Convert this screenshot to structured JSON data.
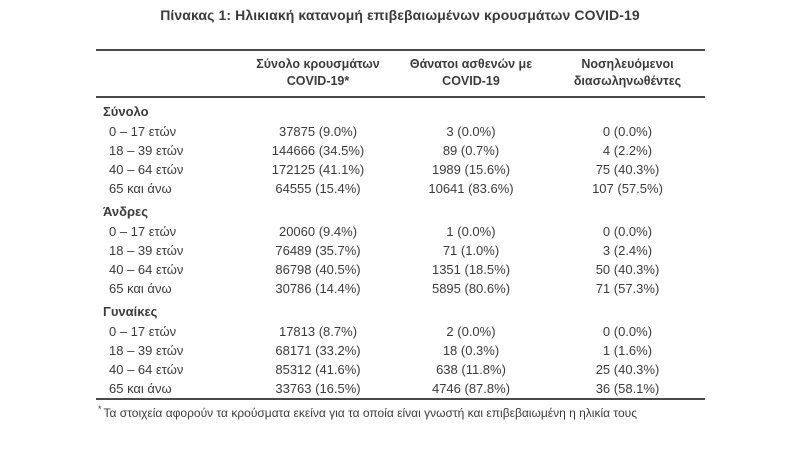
{
  "page": {
    "title": "Πίνακας 1: Ηλικιακή κατανομή επιβεβαιωμένων κρουσμάτων COVID-19"
  },
  "table": {
    "headers": {
      "cases": {
        "line1": "Σύνολο κρουσμάτων",
        "line2": "COVID-19*"
      },
      "deaths": {
        "line1": "Θάνατοι ασθενών με",
        "line2": "COVID-19"
      },
      "intubated": {
        "line1": "Νοσηλευόμενοι",
        "line2": "διασωληνωθέντες"
      }
    },
    "sections": [
      {
        "label": "Σύνολο",
        "rows": [
          {
            "age": "0 – 17 ετών",
            "cases": "37875 (9.0%)",
            "deaths": "3 (0.0%)",
            "intubated": "0 (0.0%)"
          },
          {
            "age": "18 – 39 ετών",
            "cases": "144666 (34.5%)",
            "deaths": "89 (0.7%)",
            "intubated": "4 (2.2%)"
          },
          {
            "age": "40 – 64 ετών",
            "cases": "172125 (41.1%)",
            "deaths": "1989 (15.6%)",
            "intubated": "75 (40.3%)"
          },
          {
            "age": "65 και άνω",
            "cases": "64555 (15.4%)",
            "deaths": "10641 (83.6%)",
            "intubated": "107 (57.5%)"
          }
        ]
      },
      {
        "label": "Άνδρες",
        "rows": [
          {
            "age": "0 – 17 ετών",
            "cases": "20060 (9.4%)",
            "deaths": "1 (0.0%)",
            "intubated": "0 (0.0%)"
          },
          {
            "age": "18 – 39 ετών",
            "cases": "76489 (35.7%)",
            "deaths": "71 (1.0%)",
            "intubated": "3 (2.4%)"
          },
          {
            "age": "40 – 64 ετών",
            "cases": "86798 (40.5%)",
            "deaths": "1351 (18.5%)",
            "intubated": "50 (40.3%)"
          },
          {
            "age": "65 και άνω",
            "cases": "30786 (14.4%)",
            "deaths": "5895 (80.6%)",
            "intubated": "71 (57.3%)"
          }
        ]
      },
      {
        "label": "Γυναίκες",
        "rows": [
          {
            "age": "0 – 17 ετών",
            "cases": "17813 (8.7%)",
            "deaths": "2 (0.0%)",
            "intubated": "0 (0.0%)"
          },
          {
            "age": "18 – 39 ετών",
            "cases": "68171 (33.2%)",
            "deaths": "18 (0.3%)",
            "intubated": "1 (1.6%)"
          },
          {
            "age": "40 – 64 ετών",
            "cases": "85312 (41.6%)",
            "deaths": "638 (11.8%)",
            "intubated": "25 (40.3%)"
          },
          {
            "age": "65 και άνω",
            "cases": "33763 (16.5%)",
            "deaths": "4746 (87.8%)",
            "intubated": "36 (58.1%)"
          }
        ]
      }
    ],
    "footnote": {
      "marker": "*",
      "text": "Τα στοιχεία αφορούν τα κρούσματα εκείνα για τα οποία είναι γνωστή και επιβεβαιωμένη η ηλικία τους"
    }
  },
  "colors": {
    "background": "#ffffff",
    "text": "#3b3b3b",
    "rule": "#4a4a4a"
  }
}
